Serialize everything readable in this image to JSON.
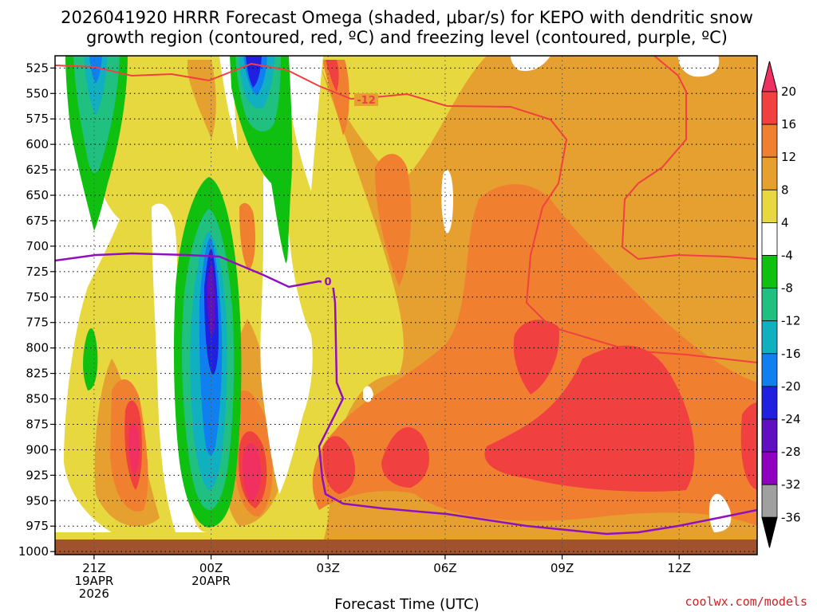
{
  "title_line1": "2026041920 HRRR Forecast Omega (shaded, μbar/s) for KEPO with dendritic snow",
  "title_line2": "growth region (contoured, red, ºC) and freezing level (contoured, purple, ºC)",
  "credit": "coolwx.com/models",
  "chart_data": {
    "type": "heatmap",
    "title": "2026041920 HRRR Forecast Omega (shaded, μbar/s) for KEPO with dendritic snow growth region (contoured, red, ºC) and freezing level (contoured, purple, ºC)",
    "xlabel": "Forecast Time (UTC)",
    "ylabel": "",
    "x_range_hours": [
      -1,
      17
    ],
    "y_range_hPa": [
      513,
      1003
    ],
    "y_ticks": [
      525,
      550,
      575,
      600,
      625,
      650,
      675,
      700,
      725,
      750,
      775,
      800,
      825,
      850,
      875,
      900,
      925,
      950,
      975,
      1000
    ],
    "x_ticks": [
      {
        "hour": 0,
        "label": [
          "21Z",
          "19APR",
          "2026"
        ]
      },
      {
        "hour": 3,
        "label": [
          "00Z",
          "20APR"
        ]
      },
      {
        "hour": 6,
        "label": [
          "03Z"
        ]
      },
      {
        "hour": 9,
        "label": [
          "06Z"
        ]
      },
      {
        "hour": 12,
        "label": [
          "09Z"
        ]
      },
      {
        "hour": 15,
        "label": [
          "12Z"
        ]
      }
    ],
    "grid": "dotted",
    "colorbar": {
      "labels": [
        "20",
        "16",
        "12",
        "8",
        "4",
        "-4",
        "-8",
        "-12",
        "-16",
        "-20",
        "-24",
        "-28",
        "-32",
        "-36"
      ],
      "colors": [
        "#f03060",
        "#f04040",
        "#f08030",
        "#e6a030",
        "#e8d840",
        "#ffffff",
        "#10c010",
        "#20c080",
        "#10b0c0",
        "#1080f0",
        "#2020e0",
        "#6010c0",
        "#9000c0",
        "#a0a0a0",
        "#000000"
      ]
    },
    "contours": [
      {
        "label": "-12",
        "color": "#f04040"
      },
      {
        "label": "0",
        "color": "#9010c0"
      }
    ],
    "surface_color": "#a0522d"
  }
}
